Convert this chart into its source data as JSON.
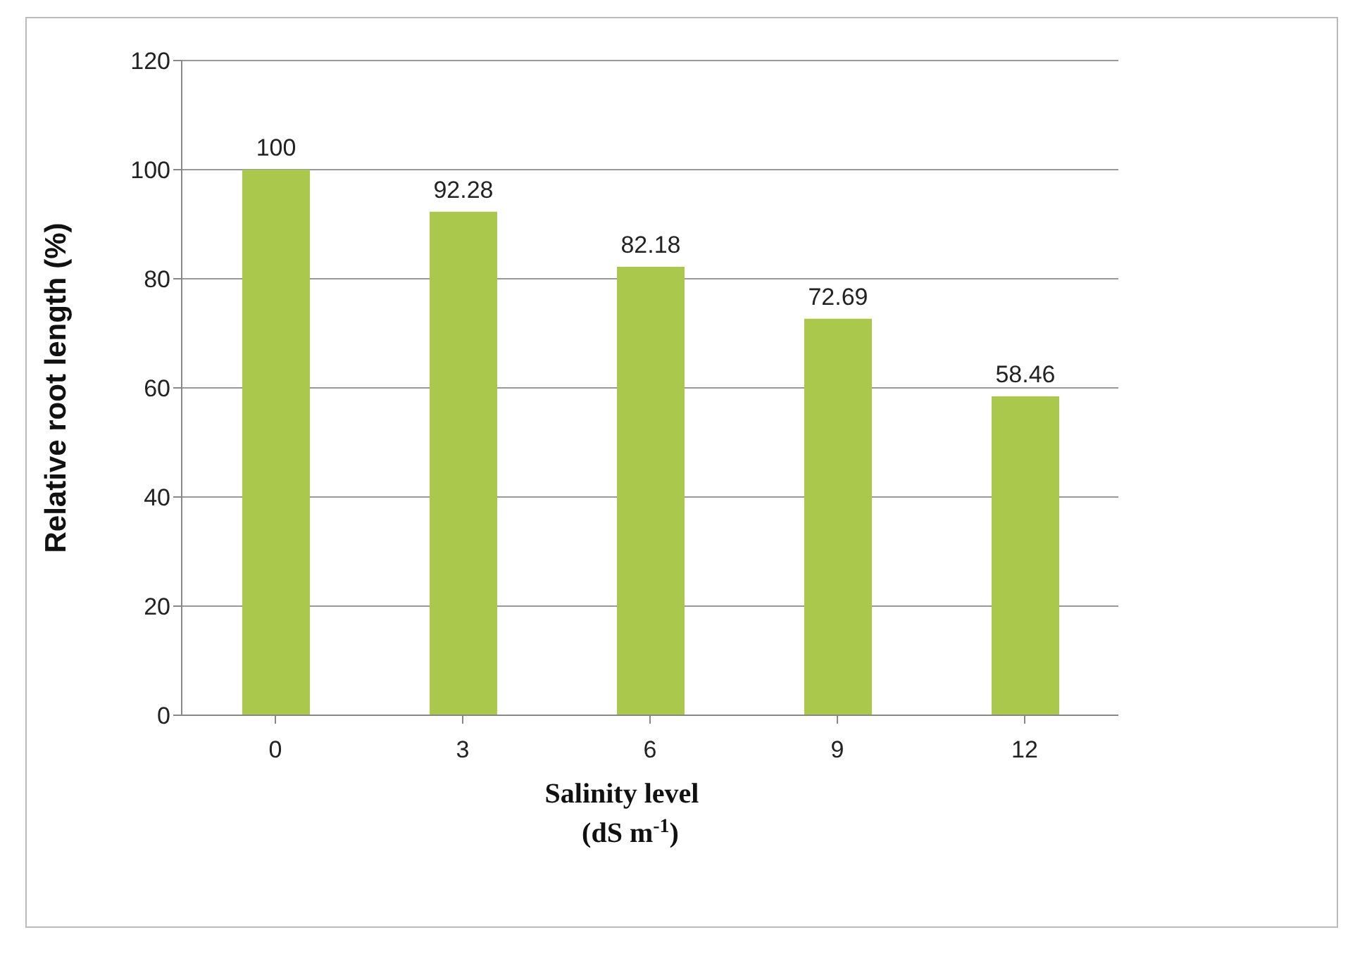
{
  "chart_data": {
    "type": "bar",
    "xlabel": "Salinity  level\n(dS m$^{-1}$)",
    "ylabel": "Relative root length (%)",
    "categories": [
      "0",
      "3",
      "6",
      "9",
      "12"
    ],
    "values": [
      100,
      92.28,
      82.18,
      72.69,
      58.46
    ],
    "color": "#a9c84c",
    "ylim": [
      0,
      120
    ],
    "yticks": [
      0,
      20,
      40,
      60,
      80,
      100,
      120
    ],
    "grid": "y",
    "data_labels": true
  }
}
